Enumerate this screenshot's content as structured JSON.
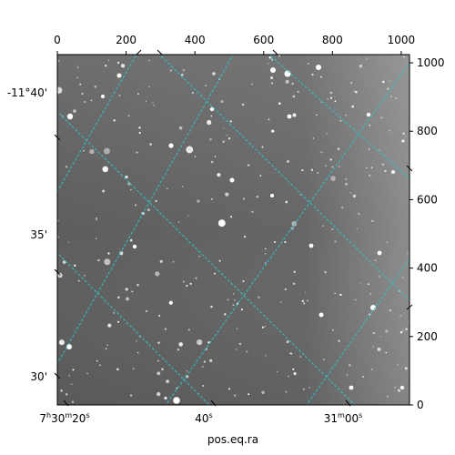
{
  "figure": {
    "image_alt": "grayscale astronomical star field with RA/Dec coordinate grid",
    "grid_color": "#2ec4c8",
    "frame_color": "#000000",
    "background_color": "#6e6e6e",
    "xlabel": "pos.eq.ra",
    "ylabel": "",
    "pixel_axes": {
      "x_ticks": [
        0,
        200,
        400,
        600,
        800,
        1000
      ],
      "y_ticks": [
        0,
        200,
        400,
        600,
        800,
        1000
      ],
      "x_tick_labels": [
        "0",
        "200",
        "400",
        "600",
        "800",
        "1000"
      ],
      "y_tick_labels": [
        "0",
        "200",
        "400",
        "600",
        "800",
        "1000"
      ],
      "xlim": [
        0,
        1024
      ],
      "ylim": [
        0,
        1024
      ]
    },
    "ra_ticks": [
      {
        "label": "7h30m20s"
      },
      {
        "label": "40s"
      },
      {
        "label": "31m00s"
      }
    ],
    "dec_ticks": [
      {
        "label": "-11°40'"
      },
      {
        "label": "35'"
      },
      {
        "label": "30'"
      }
    ]
  }
}
